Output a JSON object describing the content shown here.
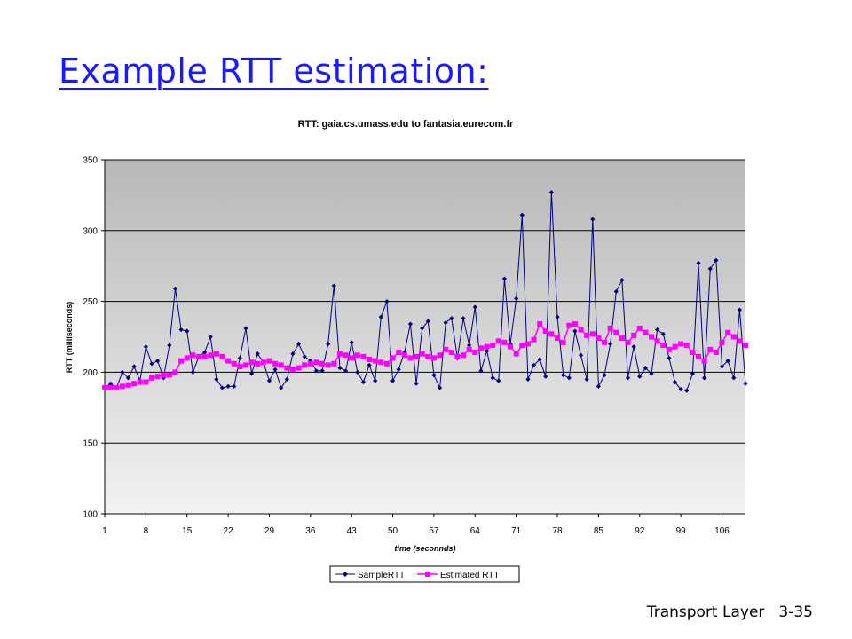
{
  "slide": {
    "title": "Example RTT estimation:",
    "footer_section": "Transport Layer",
    "footer_page": "3-35"
  },
  "chart_data": {
    "type": "line",
    "title": "RTT: gaia.cs.umass.edu to fantasia.eurecom.fr",
    "xlabel": "time (seconnds)",
    "ylabel": "RTT (milliseconds)",
    "ylim": [
      100,
      350
    ],
    "yticks": [
      100,
      150,
      200,
      250,
      300,
      350
    ],
    "xlim": [
      1,
      110
    ],
    "xticks": [
      1,
      8,
      15,
      22,
      29,
      36,
      43,
      50,
      57,
      64,
      71,
      78,
      85,
      92,
      99,
      106
    ],
    "grid": "horizontal",
    "legend_position": "bottom",
    "colors": {
      "sample": "#000080",
      "estimated": "#ff00ff",
      "plot_bg_top": "#b8b8b8",
      "plot_bg_bottom": "#f2f2f2"
    },
    "series": [
      {
        "name": "SampleRTT",
        "marker": "diamond",
        "values": [
          189,
          192,
          189,
          200,
          196,
          204,
          194,
          218,
          206,
          208,
          196,
          219,
          259,
          230,
          229,
          200,
          211,
          214,
          225,
          195,
          189,
          190,
          190,
          210,
          231,
          199,
          213,
          207,
          194,
          202,
          189,
          195,
          213,
          220,
          211,
          208,
          201,
          201,
          220,
          261,
          203,
          201,
          221,
          200,
          193,
          205,
          194,
          239,
          250,
          194,
          202,
          214,
          234,
          192,
          231,
          236,
          198,
          189,
          235,
          238,
          210,
          238,
          219,
          246,
          201,
          215,
          196,
          194,
          266,
          220,
          252,
          311,
          195,
          205,
          209,
          197,
          327,
          239,
          198,
          196,
          229,
          212,
          195,
          308,
          190,
          198,
          220,
          257,
          265,
          196,
          218,
          197,
          203,
          199,
          230,
          227,
          210,
          193,
          188,
          187,
          199,
          277,
          196,
          273,
          279,
          204,
          208,
          196,
          244,
          192
        ]
      },
      {
        "name": "Estimated RTT",
        "marker": "square",
        "values": [
          189,
          189,
          189,
          190,
          191,
          192,
          193,
          193,
          196,
          197,
          198,
          198,
          200,
          208,
          210,
          212,
          211,
          211,
          212,
          213,
          211,
          208,
          206,
          204,
          205,
          207,
          206,
          207,
          208,
          206,
          205,
          203,
          202,
          203,
          205,
          206,
          207,
          206,
          205,
          206,
          213,
          212,
          210,
          212,
          211,
          209,
          208,
          207,
          206,
          210,
          214,
          212,
          210,
          211,
          213,
          211,
          210,
          212,
          216,
          214,
          211,
          212,
          216,
          214,
          217,
          218,
          219,
          222,
          221,
          218,
          213,
          219,
          220,
          223,
          234,
          229,
          227,
          224,
          221,
          233,
          234,
          230,
          226,
          227,
          224,
          221,
          231,
          228,
          224,
          221,
          226,
          231,
          228,
          225,
          222,
          219,
          216,
          218,
          220,
          219,
          214,
          211,
          208,
          216,
          214,
          221,
          228,
          225,
          222,
          219
        ]
      }
    ]
  }
}
